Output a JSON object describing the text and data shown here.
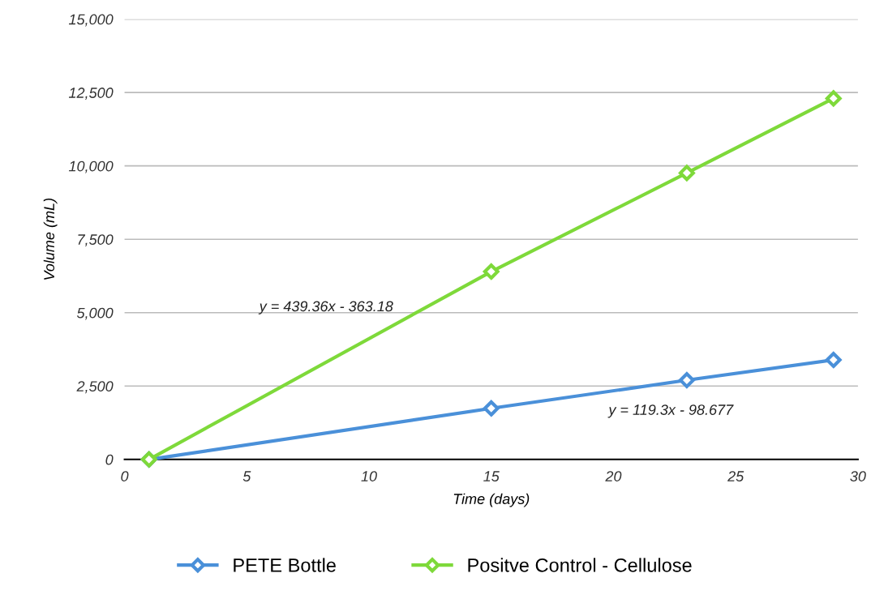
{
  "chart_data": {
    "type": "line",
    "xlabel": "Time (days)",
    "ylabel": "Volume (mL)",
    "x": [
      1,
      15,
      23,
      29
    ],
    "series": [
      {
        "name": "PETE Bottle",
        "color": "#4a90d9",
        "values": [
          0,
          1740,
          2700,
          3390
        ]
      },
      {
        "name": "Positve Control - Cellulose",
        "color": "#7ed93a",
        "values": [
          0,
          6400,
          9760,
          12300
        ]
      }
    ],
    "xlim": [
      0,
      30
    ],
    "xticks": [
      0,
      5,
      10,
      15,
      20,
      25,
      30
    ],
    "ylim": [
      0,
      15000
    ],
    "yticks": [
      {
        "value": 0,
        "label": "0"
      },
      {
        "value": 2500,
        "label": "2,500"
      },
      {
        "value": 5000,
        "label": "5,000"
      },
      {
        "value": 7500,
        "label": "7,500"
      },
      {
        "value": 10000,
        "label": "10,000"
      },
      {
        "value": 12500,
        "label": "12,500"
      },
      {
        "value": 15000,
        "label": "15,000"
      }
    ],
    "annotations": [
      "y = 439.36x - 363.18",
      "y = 119.3x - 98.677"
    ],
    "grid": "y",
    "legend": "bottom",
    "marker": "diamond",
    "line_style": "solid"
  }
}
